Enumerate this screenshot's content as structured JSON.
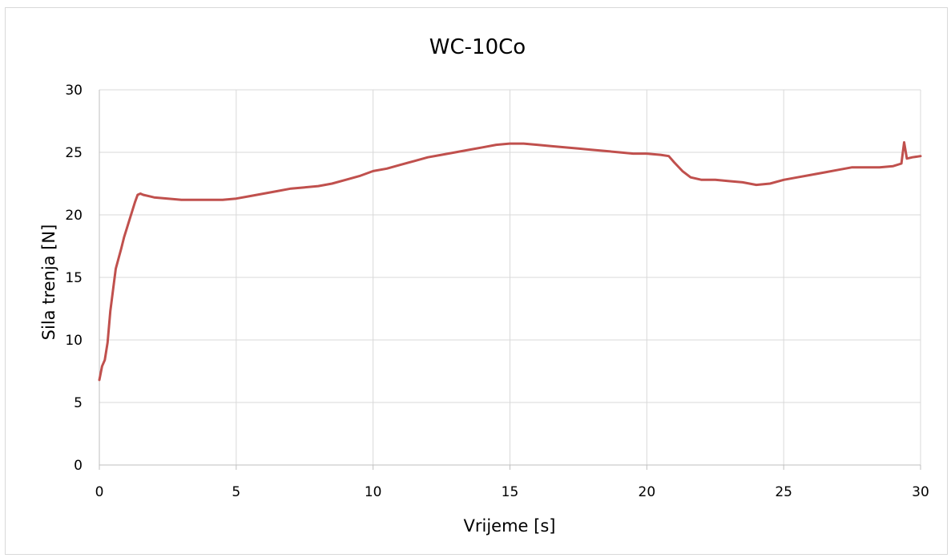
{
  "chart_data": {
    "type": "line",
    "title": "WC-10Co",
    "xlabel": "Vrijeme [s]",
    "ylabel": "Sila trenja [N]",
    "xlim": [
      0,
      30
    ],
    "ylim": [
      0,
      30
    ],
    "xticks": [
      0,
      5,
      10,
      15,
      20,
      25,
      30
    ],
    "yticks": [
      0,
      5,
      10,
      15,
      20,
      25,
      30
    ],
    "xtick_labels": [
      "0",
      "5",
      "10",
      "15",
      "20",
      "25",
      "30"
    ],
    "ytick_labels": [
      "0",
      "5",
      "10",
      "15",
      "20",
      "25",
      "30"
    ],
    "grid": true,
    "legend": "none",
    "series": [
      {
        "color": "#c0504d",
        "x": [
          0,
          0.1,
          0.2,
          0.3,
          0.4,
          0.5,
          0.6,
          0.7,
          0.8,
          0.9,
          1.0,
          1.1,
          1.2,
          1.3,
          1.4,
          1.5,
          1.6,
          1.8,
          2.0,
          2.5,
          3.0,
          3.5,
          4.0,
          4.5,
          5.0,
          5.5,
          6.0,
          6.5,
          7.0,
          7.5,
          8.0,
          8.5,
          9.0,
          9.5,
          10.0,
          10.5,
          11.0,
          11.5,
          12.0,
          12.5,
          13.0,
          13.5,
          14.0,
          14.5,
          15.0,
          15.5,
          16.0,
          16.5,
          17.0,
          17.5,
          18.0,
          18.5,
          19.0,
          19.5,
          20.0,
          20.5,
          20.8,
          21.0,
          21.3,
          21.6,
          22.0,
          22.5,
          23.0,
          23.5,
          24.0,
          24.5,
          25.0,
          25.5,
          26.0,
          26.5,
          27.0,
          27.5,
          28.0,
          28.5,
          29.0,
          29.3,
          29.4,
          29.5,
          29.7,
          30.0
        ],
        "y": [
          6.8,
          7.9,
          8.4,
          9.8,
          12.3,
          14.0,
          15.7,
          16.5,
          17.3,
          18.2,
          18.9,
          19.6,
          20.3,
          21.0,
          21.6,
          21.7,
          21.6,
          21.5,
          21.4,
          21.3,
          21.2,
          21.2,
          21.2,
          21.2,
          21.3,
          21.5,
          21.7,
          21.9,
          22.1,
          22.2,
          22.3,
          22.5,
          22.8,
          23.1,
          23.5,
          23.7,
          24.0,
          24.3,
          24.6,
          24.8,
          25.0,
          25.2,
          25.4,
          25.6,
          25.7,
          25.7,
          25.6,
          25.5,
          25.4,
          25.3,
          25.2,
          25.1,
          25.0,
          24.9,
          24.9,
          24.8,
          24.7,
          24.2,
          23.5,
          23.0,
          22.8,
          22.8,
          22.7,
          22.6,
          22.4,
          22.5,
          22.8,
          23.0,
          23.2,
          23.4,
          23.6,
          23.8,
          23.8,
          23.8,
          23.9,
          24.1,
          25.8,
          24.5,
          24.6,
          24.7
        ]
      }
    ]
  }
}
